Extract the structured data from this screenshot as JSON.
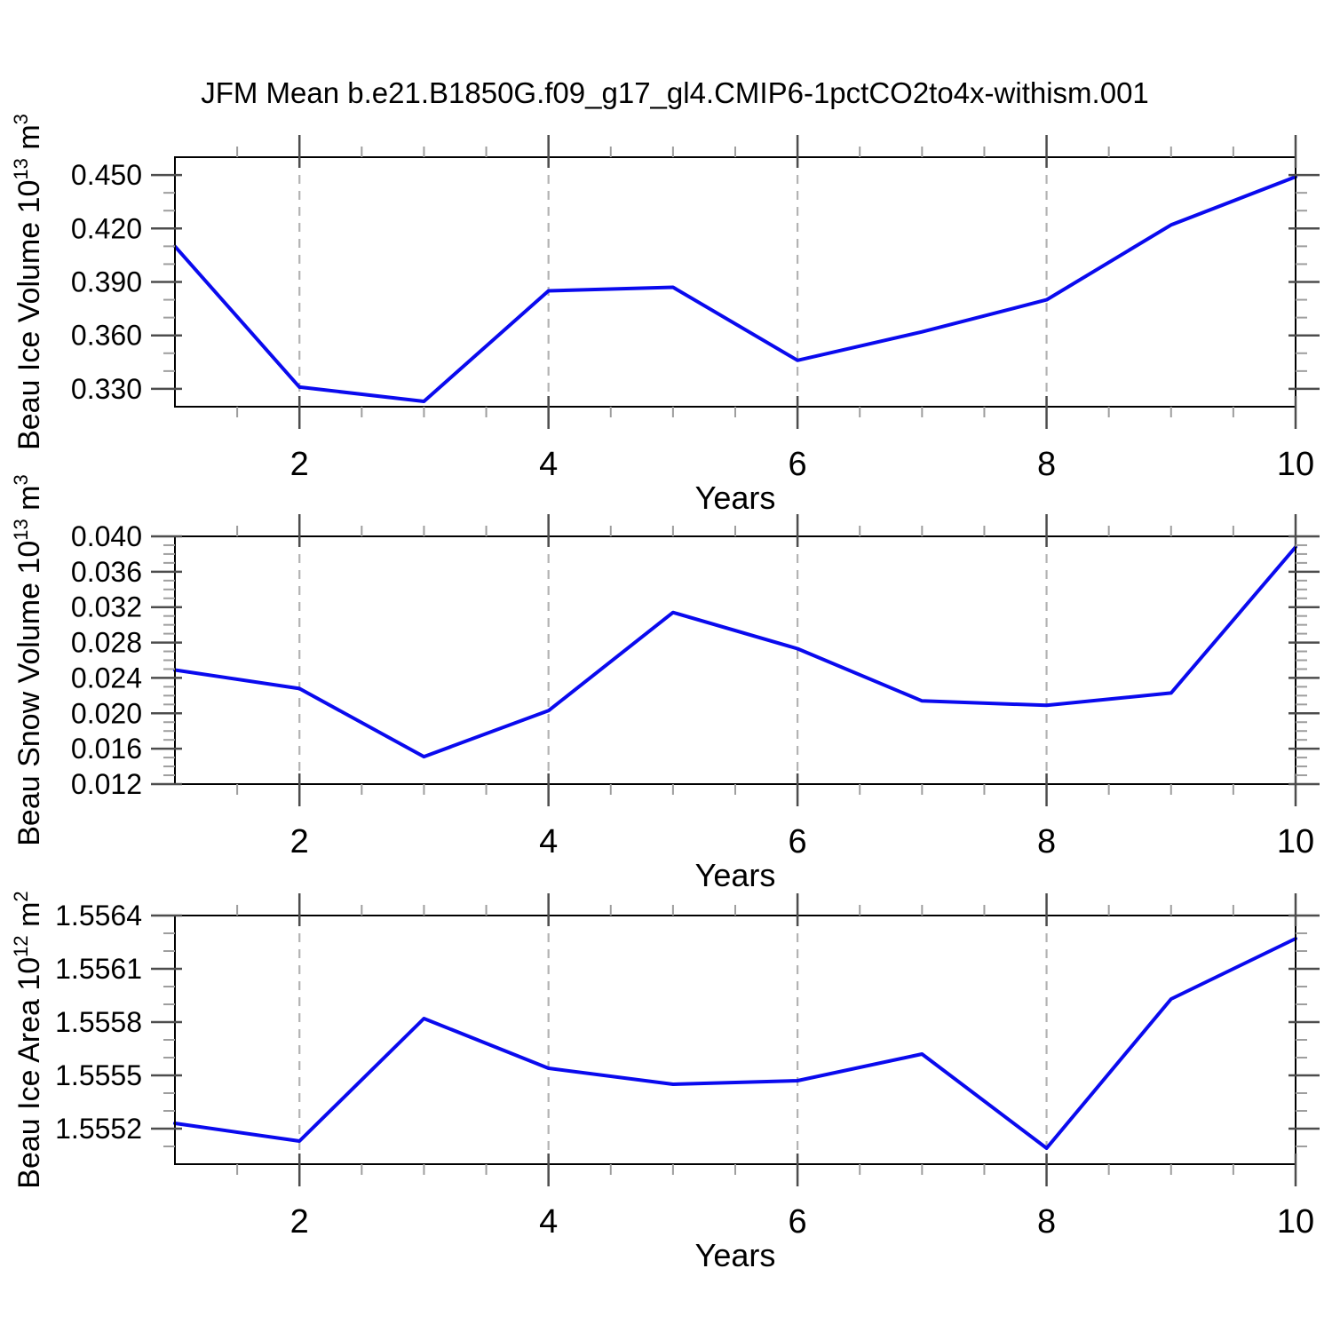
{
  "title": "JFM Mean b.e21.B1850G.f09_g17_gl4.CMIP6-1pctCO2to4x-withism.001",
  "colors": {
    "line": "#0a0aee",
    "axis": "#000000",
    "major_tick": "#4d4d4d",
    "minor_tick": "#9e9e9e",
    "grid": "#b3b3b3",
    "text": "#000000",
    "background": "#ffffff"
  },
  "chart_data": [
    {
      "type": "line",
      "title": "",
      "ylabel": "Beau Ice Volume 10^13 m^3",
      "ylabel_rich": [
        {
          "t": "Beau Ice Volume 10"
        },
        {
          "t": "13",
          "sup": true
        },
        {
          "t": " m"
        },
        {
          "t": "3",
          "sup": true
        }
      ],
      "xlabel": "Years",
      "x": [
        1,
        2,
        3,
        4,
        5,
        6,
        7,
        8,
        9,
        10
      ],
      "values": [
        0.41,
        0.331,
        0.323,
        0.385,
        0.387,
        0.346,
        0.362,
        0.38,
        0.422,
        0.449
      ],
      "xlim": [
        1,
        10
      ],
      "ylim": [
        0.32,
        0.46
      ],
      "xtick_values": [
        2,
        4,
        6,
        8,
        10
      ],
      "xtick_labels": [
        "2",
        "4",
        "6",
        "8",
        "10"
      ],
      "x_minor_step": 0.5,
      "ytick_values": [
        0.33,
        0.36,
        0.39,
        0.42,
        0.45
      ],
      "ytick_labels": [
        "0.330",
        "0.360",
        "0.390",
        "0.420",
        "0.450"
      ],
      "y_minor_step": 0.01,
      "grid_x": [
        2,
        4,
        6,
        8
      ],
      "grid_style": "vertical-dashed",
      "legend": null
    },
    {
      "type": "line",
      "title": "",
      "ylabel": "Beau Snow Volume 10^13 m^3",
      "ylabel_rich": [
        {
          "t": "Beau Snow Volume 10"
        },
        {
          "t": "13",
          "sup": true
        },
        {
          "t": " m"
        },
        {
          "t": "3",
          "sup": true
        }
      ],
      "xlabel": "Years",
      "x": [
        1,
        2,
        3,
        4,
        5,
        6,
        7,
        8,
        9,
        10
      ],
      "values": [
        0.0249,
        0.0228,
        0.0151,
        0.0203,
        0.0314,
        0.0273,
        0.0214,
        0.0209,
        0.0223,
        0.0388
      ],
      "xlim": [
        1,
        10
      ],
      "ylim": [
        0.012,
        0.04
      ],
      "xtick_values": [
        2,
        4,
        6,
        8,
        10
      ],
      "xtick_labels": [
        "2",
        "4",
        "6",
        "8",
        "10"
      ],
      "x_minor_step": 0.5,
      "ytick_values": [
        0.012,
        0.016,
        0.02,
        0.024,
        0.028,
        0.032,
        0.036,
        0.04
      ],
      "ytick_labels": [
        "0.012",
        "0.016",
        "0.020",
        "0.024",
        "0.028",
        "0.032",
        "0.036",
        "0.040"
      ],
      "y_minor_step": 0.001,
      "grid_x": [
        2,
        4,
        6,
        8
      ],
      "grid_style": "vertical-dashed",
      "legend": null
    },
    {
      "type": "line",
      "title": "",
      "ylabel": "Beau Ice Area 10^12 m^2",
      "ylabel_rich": [
        {
          "t": "Beau Ice Area 10"
        },
        {
          "t": "12",
          "sup": true
        },
        {
          "t": " m"
        },
        {
          "t": "2",
          "sup": true
        }
      ],
      "xlabel": "Years",
      "x": [
        1,
        2,
        3,
        4,
        5,
        6,
        7,
        8,
        9,
        10
      ],
      "values": [
        1.55523,
        1.55513,
        1.55582,
        1.55554,
        1.55545,
        1.55547,
        1.55562,
        1.55509,
        1.55593,
        1.55627
      ],
      "xlim": [
        1,
        10
      ],
      "ylim": [
        1.555,
        1.5564
      ],
      "xtick_values": [
        2,
        4,
        6,
        8,
        10
      ],
      "xtick_labels": [
        "2",
        "4",
        "6",
        "8",
        "10"
      ],
      "x_minor_step": 0.5,
      "ytick_values": [
        1.5552,
        1.5555,
        1.5558,
        1.5561,
        1.5564
      ],
      "ytick_labels": [
        "1.5552",
        "1.5555",
        "1.5558",
        "1.5561",
        "1.5564"
      ],
      "y_minor_step": 0.0001,
      "grid_x": [
        2,
        4,
        6,
        8
      ],
      "grid_style": "vertical-dashed",
      "legend": null
    }
  ]
}
